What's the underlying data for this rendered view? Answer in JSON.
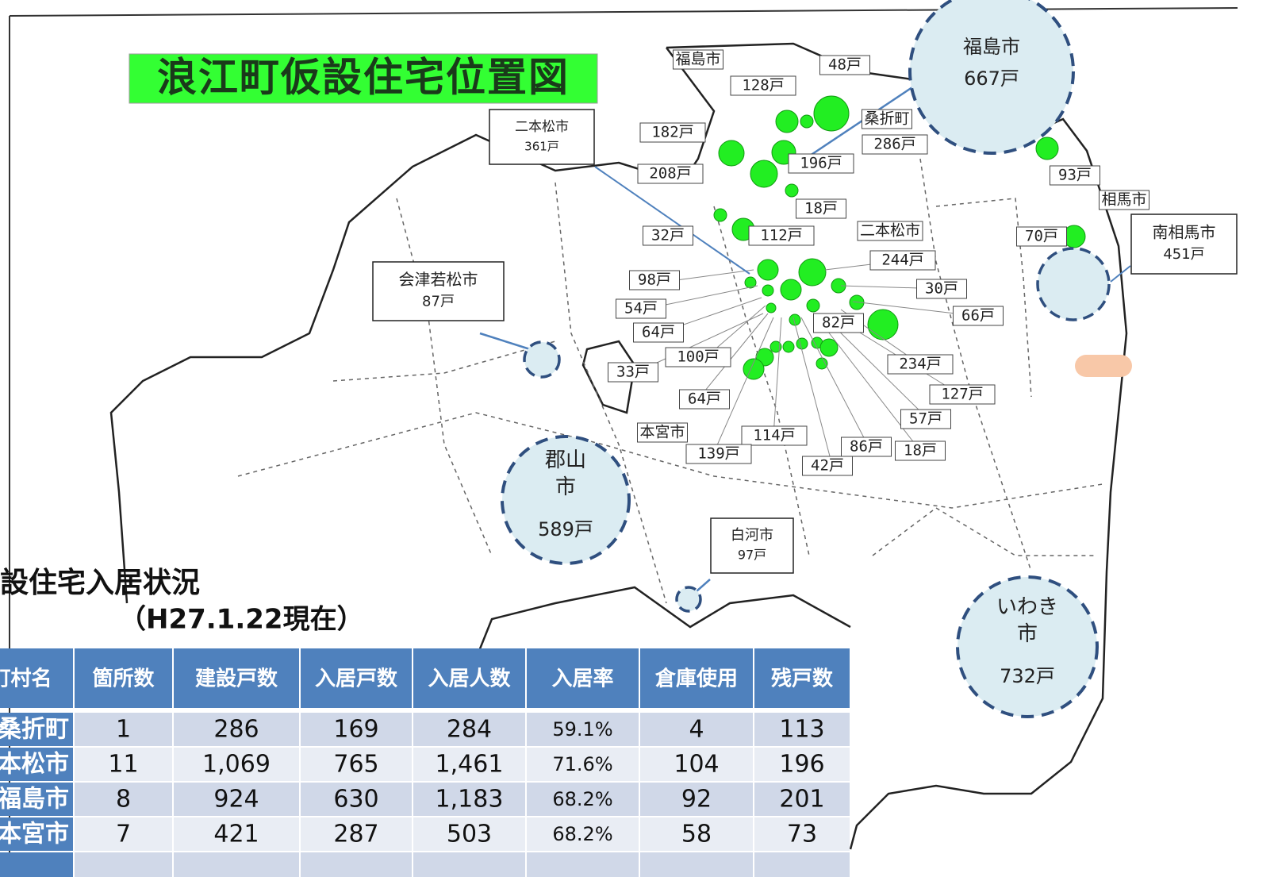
{
  "title": "浪江町仮設住宅位置図",
  "map_labels": [
    "福島市",
    "48戸",
    "128戸",
    "182戸",
    "桑折町",
    "286戸",
    "196戸",
    "208戸",
    "18戸",
    "93戸",
    "相馬市",
    "32戸",
    "112戸",
    "二本松市",
    "70戸",
    "244戸",
    "98戸",
    "30戸",
    "54戸",
    "66戸",
    "64戸",
    "82戸",
    "100戸",
    "234戸",
    "33戸",
    "127戸",
    "64戸",
    "57戸",
    "本宮市",
    "114戸",
    "86戸",
    "18戸",
    "139戸",
    "42戸"
  ],
  "callouts": [
    {
      "name": "福島市",
      "units": "667戸"
    },
    {
      "name": "二本松市",
      "units": "361戸"
    },
    {
      "name": "会津若松市",
      "units": "87戸"
    },
    {
      "name": "南相馬市",
      "units": "451戸"
    },
    {
      "name": "郡山市",
      "units": "589戸"
    },
    {
      "name": "白河市",
      "units": "97戸"
    },
    {
      "name": "いわき市",
      "units": "732戸"
    }
  ],
  "table": {
    "title": "仮設住宅入居状況",
    "date": "（H27.1.22現在）",
    "header": [
      "町村名",
      "箇所数",
      "建設戸数",
      "入居戸数",
      "入居人数",
      "入居率",
      "倉庫使用",
      "残戸数"
    ],
    "rows": [
      [
        "桑折町",
        "1",
        "286",
        "169",
        "284",
        "59.1%",
        "4",
        "113"
      ],
      [
        "二本松市",
        "11",
        "1,069",
        "765",
        "1,461",
        "71.6%",
        "104",
        "196"
      ],
      [
        "福島市",
        "8",
        "924",
        "630",
        "1,183",
        "68.2%",
        "92",
        "201"
      ],
      [
        "本宮市",
        "7",
        "421",
        "287",
        "503",
        "68.2%",
        "58",
        "73"
      ]
    ]
  }
}
